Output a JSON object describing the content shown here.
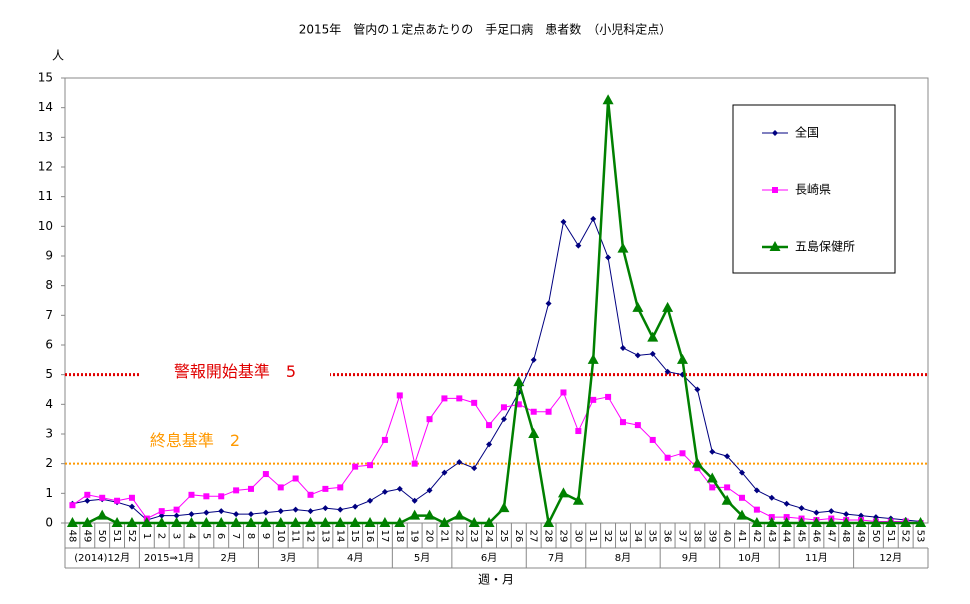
{
  "chart_data": {
    "type": "line",
    "title": "2015年　管内の１定点あたりの　手足口病　患者数　（小児科定点）",
    "y_label": "人",
    "x_label": "週・月",
    "categories": [
      "48",
      "49",
      "50",
      "51",
      "52",
      "1",
      "2",
      "3",
      "4",
      "5",
      "6",
      "7",
      "8",
      "9",
      "10",
      "11",
      "12",
      "13",
      "14",
      "15",
      "16",
      "17",
      "18",
      "19",
      "20",
      "21",
      "22",
      "23",
      "24",
      "25",
      "26",
      "27",
      "28",
      "29",
      "30",
      "31",
      "32",
      "33",
      "34",
      "35",
      "36",
      "37",
      "38",
      "39",
      "40",
      "41",
      "42",
      "43",
      "44",
      "45",
      "46",
      "47",
      "48",
      "49",
      "50",
      "51",
      "52",
      "53"
    ],
    "months": [
      "(2014)12月",
      "2015⇒1月",
      "2月",
      "3月",
      "4月",
      "5月",
      "6月",
      "7月",
      "8月",
      "9月",
      "10月",
      "11月",
      "12月"
    ],
    "ylim": [
      0,
      15
    ],
    "yticks": [
      0,
      1,
      2,
      3,
      4,
      5,
      6,
      7,
      8,
      9,
      10,
      11,
      12,
      13,
      14,
      15
    ],
    "series": [
      {
        "name": "全国",
        "color": "#000080",
        "marker": "diamond",
        "values": [
          0.65,
          0.75,
          0.8,
          0.7,
          0.55,
          0.1,
          0.25,
          0.25,
          0.3,
          0.35,
          0.4,
          0.3,
          0.3,
          0.35,
          0.4,
          0.45,
          0.4,
          0.5,
          0.45,
          0.55,
          0.75,
          1.05,
          1.15,
          0.75,
          1.1,
          1.7,
          2.05,
          1.85,
          2.65,
          3.5,
          4.4,
          5.5,
          7.4,
          10.15,
          9.35,
          10.25,
          8.95,
          5.9,
          5.65,
          5.7,
          5.1,
          5.0,
          4.5,
          2.4,
          2.25,
          1.7,
          1.1,
          0.85,
          0.65,
          0.5,
          0.35,
          0.4,
          0.3,
          0.25,
          0.2,
          0.15,
          0.1,
          0.05
        ]
      },
      {
        "name": "長崎県",
        "color": "#ff00ff",
        "marker": "square",
        "values": [
          0.6,
          0.95,
          0.85,
          0.75,
          0.85,
          0.15,
          0.4,
          0.45,
          0.95,
          0.9,
          0.9,
          1.1,
          1.15,
          1.65,
          1.2,
          1.5,
          0.95,
          1.15,
          1.2,
          1.9,
          1.95,
          2.8,
          4.3,
          2.0,
          3.5,
          4.2,
          4.2,
          4.05,
          3.3,
          3.9,
          4.0,
          3.75,
          3.75,
          4.4,
          3.1,
          4.15,
          4.25,
          3.4,
          3.3,
          2.8,
          2.2,
          2.35,
          1.85,
          1.2,
          1.2,
          0.85,
          0.45,
          0.2,
          0.2,
          0.15,
          0.1,
          0.15,
          0.1,
          0.1,
          0.05,
          0.05,
          0.05,
          0
        ]
      },
      {
        "name": "五島保健所",
        "color": "#008000",
        "marker": "triangle",
        "values": [
          0,
          0,
          0.25,
          0,
          0,
          0,
          0,
          0,
          0,
          0,
          0,
          0,
          0,
          0,
          0,
          0,
          0,
          0,
          0,
          0,
          0,
          0,
          0,
          0.25,
          0.25,
          0,
          0.25,
          0,
          0,
          0.5,
          4.75,
          3.0,
          0,
          1.0,
          0.75,
          5.5,
          14.25,
          9.25,
          7.25,
          6.25,
          7.25,
          5.5,
          2.0,
          1.5,
          0.75,
          0.25,
          0,
          0,
          0,
          0,
          0,
          0,
          0,
          0,
          0,
          0,
          0,
          0
        ]
      }
    ],
    "reference_lines": [
      {
        "label": "警報開始基準　5",
        "value": 5,
        "color": "#e00000"
      },
      {
        "label": "終息基準　2",
        "value": 2,
        "color": "#ff9900"
      }
    ]
  }
}
